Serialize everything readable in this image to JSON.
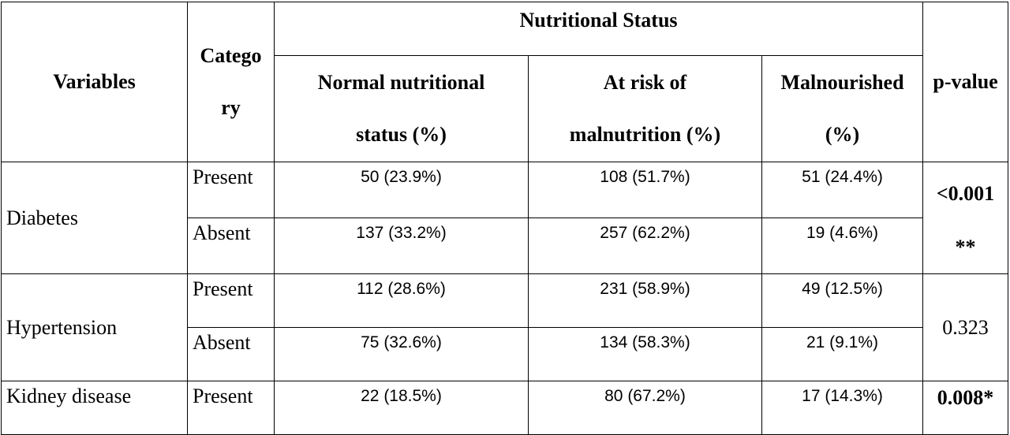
{
  "header": {
    "variables": "Variables",
    "category_line1": "Catego",
    "category_line2": "ry",
    "nutritional_status": "Nutritional Status",
    "normal_line1": "Normal nutritional",
    "normal_line2": "status (%)",
    "risk_line1": "At risk of",
    "risk_line2": "malnutrition (%)",
    "malnourished_line1": "Malnourished",
    "malnourished_line2": "(%)",
    "p_value": "p-value"
  },
  "rows": [
    {
      "variable": "Diabetes",
      "p_line1": "<0.001",
      "p_line2": "**",
      "items": [
        {
          "category": "Present",
          "normal": "50 (23.9%)",
          "risk": "108 (51.7%)",
          "malnourished": "51 (24.4%)"
        },
        {
          "category": "Absent",
          "normal": "137 (33.2%)",
          "risk": "257 (62.2%)",
          "malnourished": "19 (4.6%)"
        }
      ]
    },
    {
      "variable": "Hypertension",
      "p_line1": "0.323",
      "items": [
        {
          "category": "Present",
          "normal": "112 (28.6%)",
          "risk": "231 (58.9%)",
          "malnourished": "49 (12.5%)"
        },
        {
          "category": "Absent",
          "normal": "75 (32.6%)",
          "risk": "134 (58.3%)",
          "malnourished": "21 (9.1%)"
        }
      ]
    },
    {
      "variable": "Kidney disease",
      "p_line1": "0.008*",
      "items": [
        {
          "category": "Present",
          "normal": "22 (18.5%)",
          "risk": "80 (67.2%)",
          "malnourished": "17 (14.3%)"
        }
      ]
    }
  ]
}
